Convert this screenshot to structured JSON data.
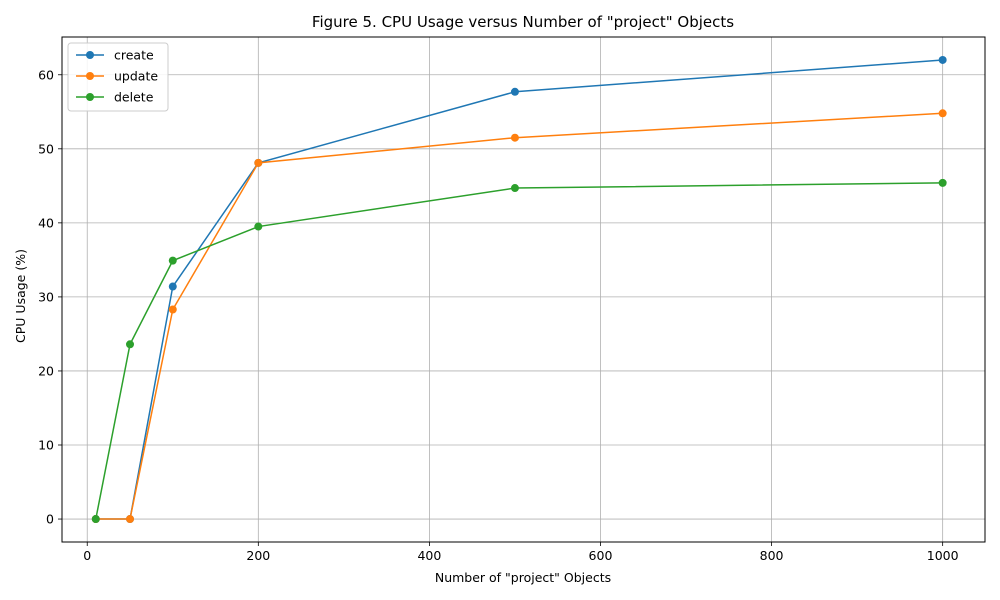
{
  "chart_data": {
    "type": "line",
    "title": "Figure 5. CPU Usage versus Number of \"project\" Objects",
    "xlabel": "Number of \"project\" Objects",
    "ylabel": "CPU Usage (%)",
    "xlim": [
      -29.5,
      1049.5
    ],
    "ylim": [
      -3.1,
      65.1
    ],
    "xticks": [
      0,
      200,
      400,
      600,
      800,
      1000
    ],
    "yticks": [
      0,
      10,
      20,
      30,
      40,
      50,
      60
    ],
    "grid": true,
    "legend_position": "top-left",
    "series": [
      {
        "name": "create",
        "color": "#1f77b4",
        "x": [
          10,
          50,
          100,
          200,
          500,
          1000
        ],
        "y": [
          0,
          0,
          31.4,
          48.1,
          57.7,
          62.0
        ]
      },
      {
        "name": "update",
        "color": "#ff7f0e",
        "x": [
          10,
          50,
          100,
          200,
          500,
          1000
        ],
        "y": [
          0,
          0,
          28.3,
          48.1,
          51.5,
          54.8
        ]
      },
      {
        "name": "delete",
        "color": "#2ca02c",
        "x": [
          10,
          50,
          100,
          200,
          500,
          1000
        ],
        "y": [
          0,
          23.6,
          34.9,
          39.5,
          44.7,
          45.4
        ]
      }
    ]
  }
}
